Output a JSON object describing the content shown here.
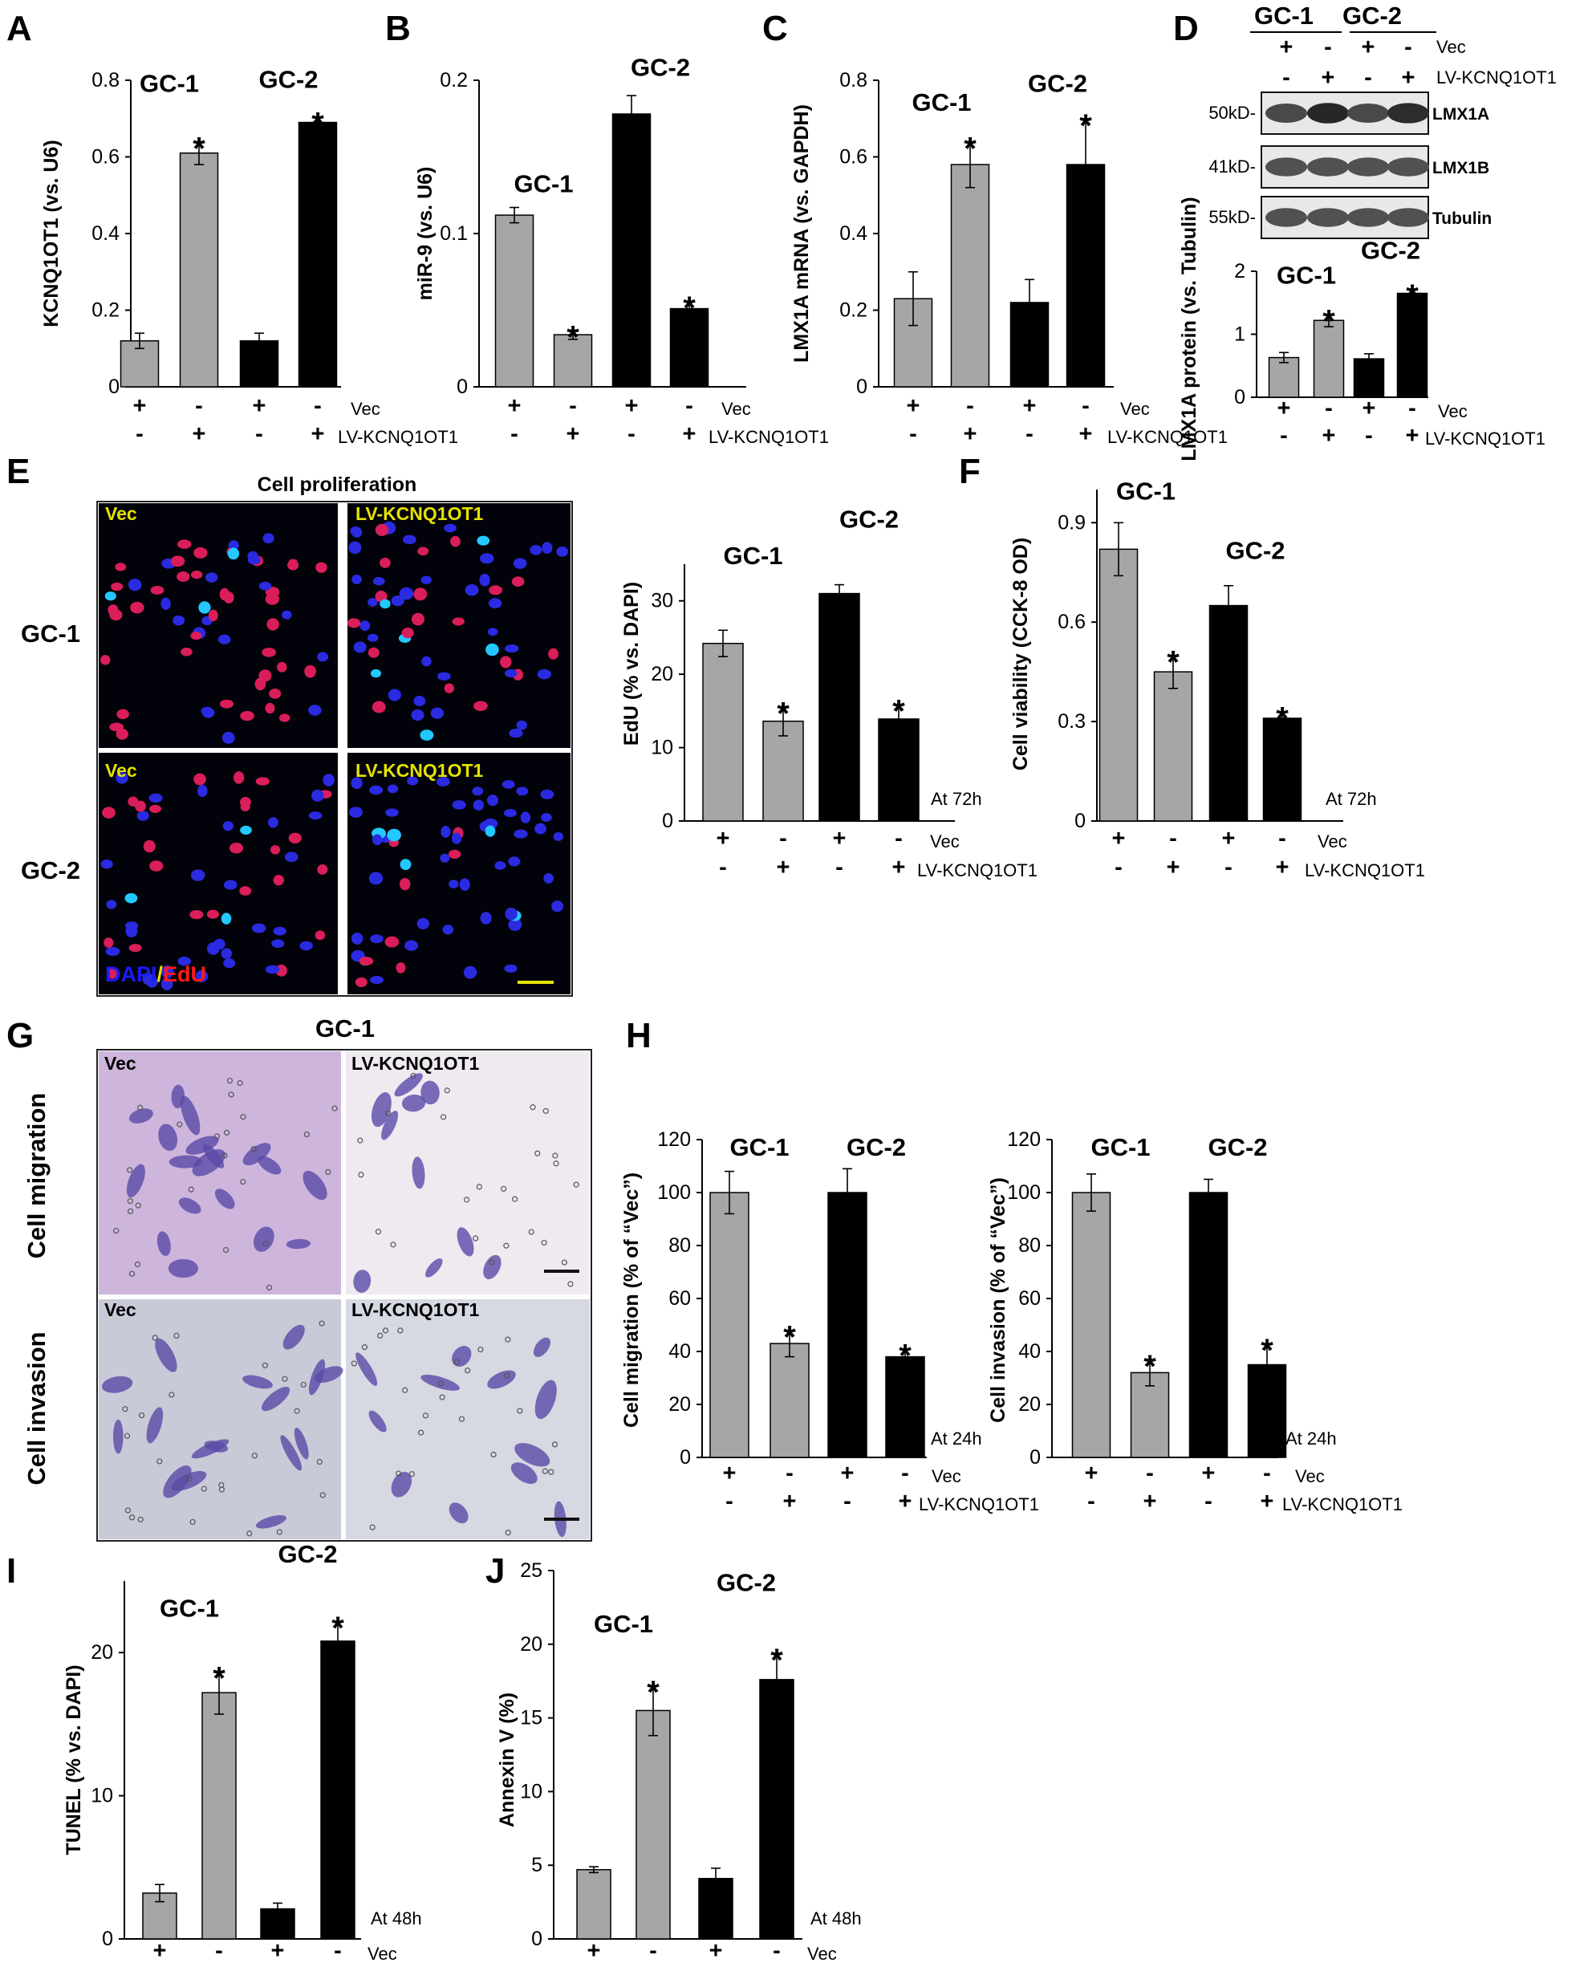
{
  "colors": {
    "gray": "#a6a6a6",
    "black": "#000000",
    "yellow": "#e5e200",
    "blue": "#1a1aff",
    "red": "#ff1a1a"
  },
  "row_labels": {
    "vec": "Vec",
    "lv": "LV-KCNQ1OT1"
  },
  "vec_signs": [
    "+",
    "-",
    "+",
    "-"
  ],
  "lv_signs": [
    "-",
    "+",
    "-",
    "+"
  ],
  "chart_data": [
    {
      "id": "A",
      "type": "bar",
      "letter": "A",
      "ylabel": "KCNQ1OT1 (vs. U6)",
      "ylim": [
        0,
        0.8
      ],
      "yticks": [
        0,
        0.2,
        0.4,
        0.6,
        0.8
      ],
      "yticklabels": [
        "0",
        "0.2",
        "0.4",
        "0.6",
        "0.8"
      ],
      "categories": [
        "GC-1 Vec",
        "GC-1 LV-KCNQ1OT1",
        "GC-2 Vec",
        "GC-2 LV-KCNQ1OT1"
      ],
      "values": [
        0.12,
        0.61,
        0.12,
        0.69
      ],
      "errors": [
        0.02,
        0.03,
        0.02,
        0.015
      ],
      "colors": [
        "gray",
        "gray",
        "black",
        "black"
      ],
      "stars": [
        false,
        true,
        false,
        true
      ],
      "group_labels": [
        {
          "text": "GC-1",
          "x": 0.5,
          "y": 0.77
        },
        {
          "text": "GC-2",
          "x": 2.5,
          "y": 0.78
        }
      ],
      "note": ""
    },
    {
      "id": "B",
      "type": "bar",
      "letter": "B",
      "ylabel": "miR-9 (vs. U6)",
      "ylim": [
        0,
        0.2
      ],
      "yticks": [
        0,
        0.1,
        0.2
      ],
      "yticklabels": [
        "0",
        "0.1",
        "0.2"
      ],
      "categories": [
        "GC-1 Vec",
        "GC-1 LV-KCNQ1OT1",
        "GC-2 Vec",
        "GC-2 LV-KCNQ1OT1"
      ],
      "values": [
        0.112,
        0.034,
        0.178,
        0.051
      ],
      "errors": [
        0.005,
        0.003,
        0.012,
        0.005
      ],
      "colors": [
        "gray",
        "gray",
        "black",
        "black"
      ],
      "stars": [
        false,
        true,
        false,
        true
      ],
      "group_labels": [
        {
          "text": "GC-1",
          "x": 0.5,
          "y": 0.127
        },
        {
          "text": "GC-2",
          "x": 2.5,
          "y": 0.203
        }
      ],
      "note": ""
    },
    {
      "id": "C",
      "type": "bar",
      "letter": "C",
      "ylabel": "LMX1A mRNA (vs. GAPDH)",
      "ylim": [
        0,
        0.8
      ],
      "yticks": [
        0,
        0.2,
        0.4,
        0.6,
        0.8
      ],
      "yticklabels": [
        "0",
        "0.2",
        "0.4",
        "0.6",
        "0.8"
      ],
      "categories": [
        "GC-1 Vec",
        "GC-1 LV-KCNQ1OT1",
        "GC-2 Vec",
        "GC-2 LV-KCNQ1OT1"
      ],
      "values": [
        0.23,
        0.58,
        0.22,
        0.58
      ],
      "errors": [
        0.07,
        0.06,
        0.06,
        0.12
      ],
      "colors": [
        "gray",
        "gray",
        "black",
        "black"
      ],
      "stars": [
        false,
        true,
        false,
        true
      ],
      "group_labels": [
        {
          "text": "GC-1",
          "x": 0.5,
          "y": 0.72
        },
        {
          "text": "GC-2",
          "x": 2.5,
          "y": 0.77
        }
      ],
      "note": ""
    },
    {
      "id": "D",
      "type": "bar",
      "letter": "D",
      "ylabel": "LMX1A protein (vs. Tubulin)",
      "ylim": [
        0,
        2
      ],
      "yticks": [
        0,
        1,
        2
      ],
      "yticklabels": [
        "0",
        "1",
        "2"
      ],
      "categories": [
        "GC-1 Vec",
        "GC-1 LV-KCNQ1OT1",
        "GC-2 Vec",
        "GC-2 LV-KCNQ1OT1"
      ],
      "values": [
        0.63,
        1.22,
        0.61,
        1.65
      ],
      "errors": [
        0.08,
        0.1,
        0.08,
        0.07
      ],
      "colors": [
        "gray",
        "gray",
        "black",
        "black"
      ],
      "stars": [
        false,
        true,
        false,
        true
      ],
      "group_labels": [
        {
          "text": "GC-1",
          "x": 0.5,
          "y": 1.8
        },
        {
          "text": "GC-2",
          "x": 2.5,
          "y": 2.2
        }
      ],
      "note": ""
    },
    {
      "id": "E",
      "type": "bar",
      "letter": "",
      "ylabel": "EdU (% vs. DAPI)",
      "ylim": [
        0,
        35
      ],
      "yticks": [
        0,
        10,
        20,
        30
      ],
      "yticklabels": [
        "0",
        "10",
        "20",
        "30"
      ],
      "categories": [
        "GC-1 Vec",
        "GC-1 LV-KCNQ1OT1",
        "GC-2 Vec",
        "GC-2 LV-KCNQ1OT1"
      ],
      "values": [
        24.2,
        13.6,
        31,
        13.9
      ],
      "errors": [
        1.8,
        2,
        1.2,
        2
      ],
      "colors": [
        "gray",
        "gray",
        "black",
        "black"
      ],
      "stars": [
        false,
        true,
        false,
        true
      ],
      "group_labels": [
        {
          "text": "GC-1",
          "x": 0.5,
          "y": 35
        },
        {
          "text": "GC-2",
          "x": 2.5,
          "y": 40
        }
      ],
      "note": "At 72h"
    },
    {
      "id": "F",
      "type": "bar",
      "letter": "F",
      "ylabel": "Cell viability (CCK-8 OD)",
      "ylim": [
        0,
        1.0
      ],
      "yticks": [
        0,
        0.3,
        0.6,
        0.9
      ],
      "yticklabels": [
        "0",
        "0.3",
        "0.6",
        "0.9"
      ],
      "categories": [
        "GC-1 Vec",
        "GC-1 LV-KCNQ1OT1",
        "GC-2 Vec",
        "GC-2 LV-KCNQ1OT1"
      ],
      "values": [
        0.82,
        0.45,
        0.65,
        0.31
      ],
      "errors": [
        0.08,
        0.05,
        0.06,
        0.02
      ],
      "colors": [
        "gray",
        "gray",
        "black",
        "black"
      ],
      "stars": [
        false,
        true,
        false,
        true
      ],
      "group_labels": [
        {
          "text": "GC-1",
          "x": 0.5,
          "y": 0.97
        },
        {
          "text": "GC-2",
          "x": 2.5,
          "y": 0.79
        }
      ],
      "note": "At 72h"
    },
    {
      "id": "H1",
      "type": "bar",
      "letter": "H",
      "ylabel": "Cell migration (% of “Vec”)",
      "ylim": [
        0,
        120
      ],
      "yticks": [
        0,
        20,
        40,
        60,
        80,
        100,
        120
      ],
      "yticklabels": [
        "0",
        "20",
        "40",
        "60",
        "80",
        "100",
        "120"
      ],
      "categories": [
        "GC-1 Vec",
        "GC-1 LV-KCNQ1OT1",
        "GC-2 Vec",
        "GC-2 LV-KCNQ1OT1"
      ],
      "values": [
        100,
        43,
        100,
        38
      ],
      "errors": [
        8,
        5,
        9,
        3
      ],
      "colors": [
        "gray",
        "gray",
        "black",
        "black"
      ],
      "stars": [
        false,
        true,
        false,
        true
      ],
      "group_labels": [
        {
          "text": "GC-1",
          "x": 0.5,
          "y": 114
        },
        {
          "text": "GC-2",
          "x": 2.5,
          "y": 114
        }
      ],
      "note": "At 24h"
    },
    {
      "id": "H2",
      "type": "bar",
      "letter": "",
      "ylabel": "Cell invasion (% of “Vec”)",
      "ylim": [
        0,
        120
      ],
      "yticks": [
        0,
        20,
        40,
        60,
        80,
        100,
        120
      ],
      "yticklabels": [
        "0",
        "20",
        "40",
        "60",
        "80",
        "100",
        "120"
      ],
      "categories": [
        "GC-1 Vec",
        "GC-1 LV-KCNQ1OT1",
        "GC-2 Vec",
        "GC-2 LV-KCNQ1OT1"
      ],
      "values": [
        100,
        32,
        100,
        35
      ],
      "errors": [
        7,
        5,
        5,
        8
      ],
      "colors": [
        "gray",
        "gray",
        "black",
        "black"
      ],
      "stars": [
        false,
        true,
        false,
        true
      ],
      "group_labels": [
        {
          "text": "GC-1",
          "x": 0.5,
          "y": 114
        },
        {
          "text": "GC-2",
          "x": 2.5,
          "y": 114
        }
      ],
      "note": "At 24h"
    },
    {
      "id": "I",
      "type": "bar",
      "letter": "I",
      "ylabel": "TUNEL (% vs. DAPI)",
      "ylim": [
        0,
        25
      ],
      "yticks": [
        0,
        10,
        20
      ],
      "yticklabels": [
        "0",
        "10",
        "20"
      ],
      "categories": [
        "GC-1 Vec",
        "GC-1 LV-KCNQ1OT1",
        "GC-2 Vec",
        "GC-2 LV-KCNQ1OT1"
      ],
      "values": [
        3.2,
        17.2,
        2.1,
        20.8
      ],
      "errors": [
        0.6,
        1.5,
        0.4,
        1.4
      ],
      "colors": [
        "gray",
        "gray",
        "black",
        "black"
      ],
      "stars": [
        false,
        true,
        false,
        true
      ],
      "group_labels": [
        {
          "text": "GC-1",
          "x": 0.5,
          "y": 22.5
        },
        {
          "text": "GC-2",
          "x": 2.5,
          "y": 26.3
        }
      ],
      "note": "At 48h"
    },
    {
      "id": "J",
      "type": "bar",
      "letter": "J",
      "ylabel": "Annexin V (%)",
      "ylim": [
        0,
        25
      ],
      "yticks": [
        0,
        5,
        10,
        15,
        20,
        25
      ],
      "yticklabels": [
        "0",
        "5",
        "10",
        "15",
        "20",
        "25"
      ],
      "categories": [
        "GC-1 Vec",
        "GC-1 LV-KCNQ1OT1",
        "GC-2 Vec",
        "GC-2 LV-KCNQ1OT1"
      ],
      "values": [
        4.7,
        15.5,
        4.1,
        17.6
      ],
      "errors": [
        0.2,
        1.7,
        0.7,
        1.8
      ],
      "colors": [
        "gray",
        "gray",
        "black",
        "black"
      ],
      "stars": [
        false,
        true,
        false,
        true
      ],
      "group_labels": [
        {
          "text": "GC-1",
          "x": 0.5,
          "y": 20.8
        },
        {
          "text": "GC-2",
          "x": 2.5,
          "y": 23.6
        }
      ],
      "note": "At 48h"
    }
  ],
  "blot": {
    "group_labels": [
      "GC-1",
      "GC-2"
    ],
    "vec_signs": [
      "+",
      "-",
      "+",
      "-"
    ],
    "lv_signs": [
      "-",
      "+",
      "-",
      "+"
    ],
    "rows": [
      {
        "mw": "50kD-",
        "name": "LMX1A",
        "intensity": [
          0.75,
          0.95,
          0.75,
          0.92
        ]
      },
      {
        "mw": "41kD-",
        "name": "LMX1B",
        "intensity": [
          0.7,
          0.7,
          0.7,
          0.7
        ]
      },
      {
        "mw": "55kD-",
        "name": "Tubulin",
        "intensity": [
          0.7,
          0.7,
          0.7,
          0.7
        ]
      }
    ]
  },
  "panel_e": {
    "title": "Cell proliferation",
    "row_labels": [
      "GC-1",
      "GC-2"
    ],
    "tile_labels": [
      "Vec",
      "LV-KCNQ1OT1",
      "Vec",
      "LV-KCNQ1OT1"
    ],
    "stain_dapi": "DAPI",
    "stain_sep": "/",
    "stain_edu": "EdU"
  },
  "panel_g": {
    "letter": "G",
    "title": "GC-1",
    "row_labels": [
      "Cell migration",
      "Cell invasion"
    ],
    "tile_labels": [
      "Vec",
      "LV-KCNQ1OT1",
      "Vec",
      "LV-KCNQ1OT1"
    ]
  },
  "letters": {
    "E": "E"
  }
}
